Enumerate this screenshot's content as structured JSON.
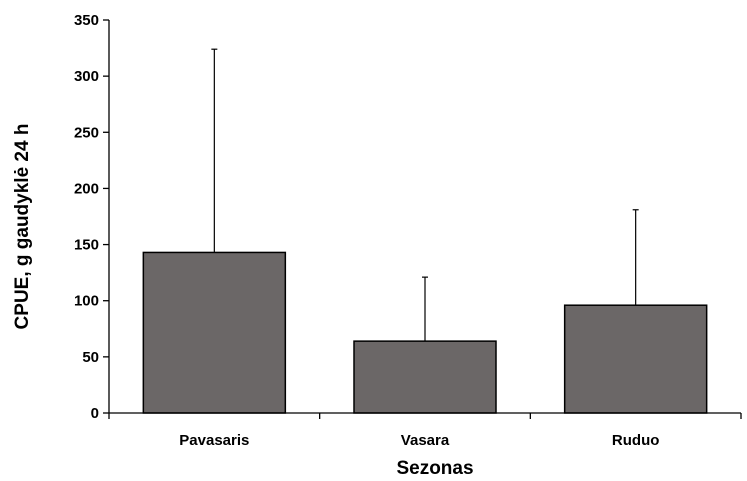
{
  "chart_data": {
    "type": "bar",
    "categories": [
      "Pavasaris",
      "Vasara",
      "Ruduo"
    ],
    "values": [
      143,
      64,
      96
    ],
    "error_upper": [
      324,
      121,
      181
    ],
    "xlabel": "Sezonas",
    "ylabel": "CPUE, g gaudyklė 24 h",
    "ylim": [
      0,
      350
    ],
    "yticks": [
      0,
      50,
      100,
      150,
      200,
      250,
      300,
      350
    ],
    "grid": false,
    "bar_color": "#6b6767"
  }
}
